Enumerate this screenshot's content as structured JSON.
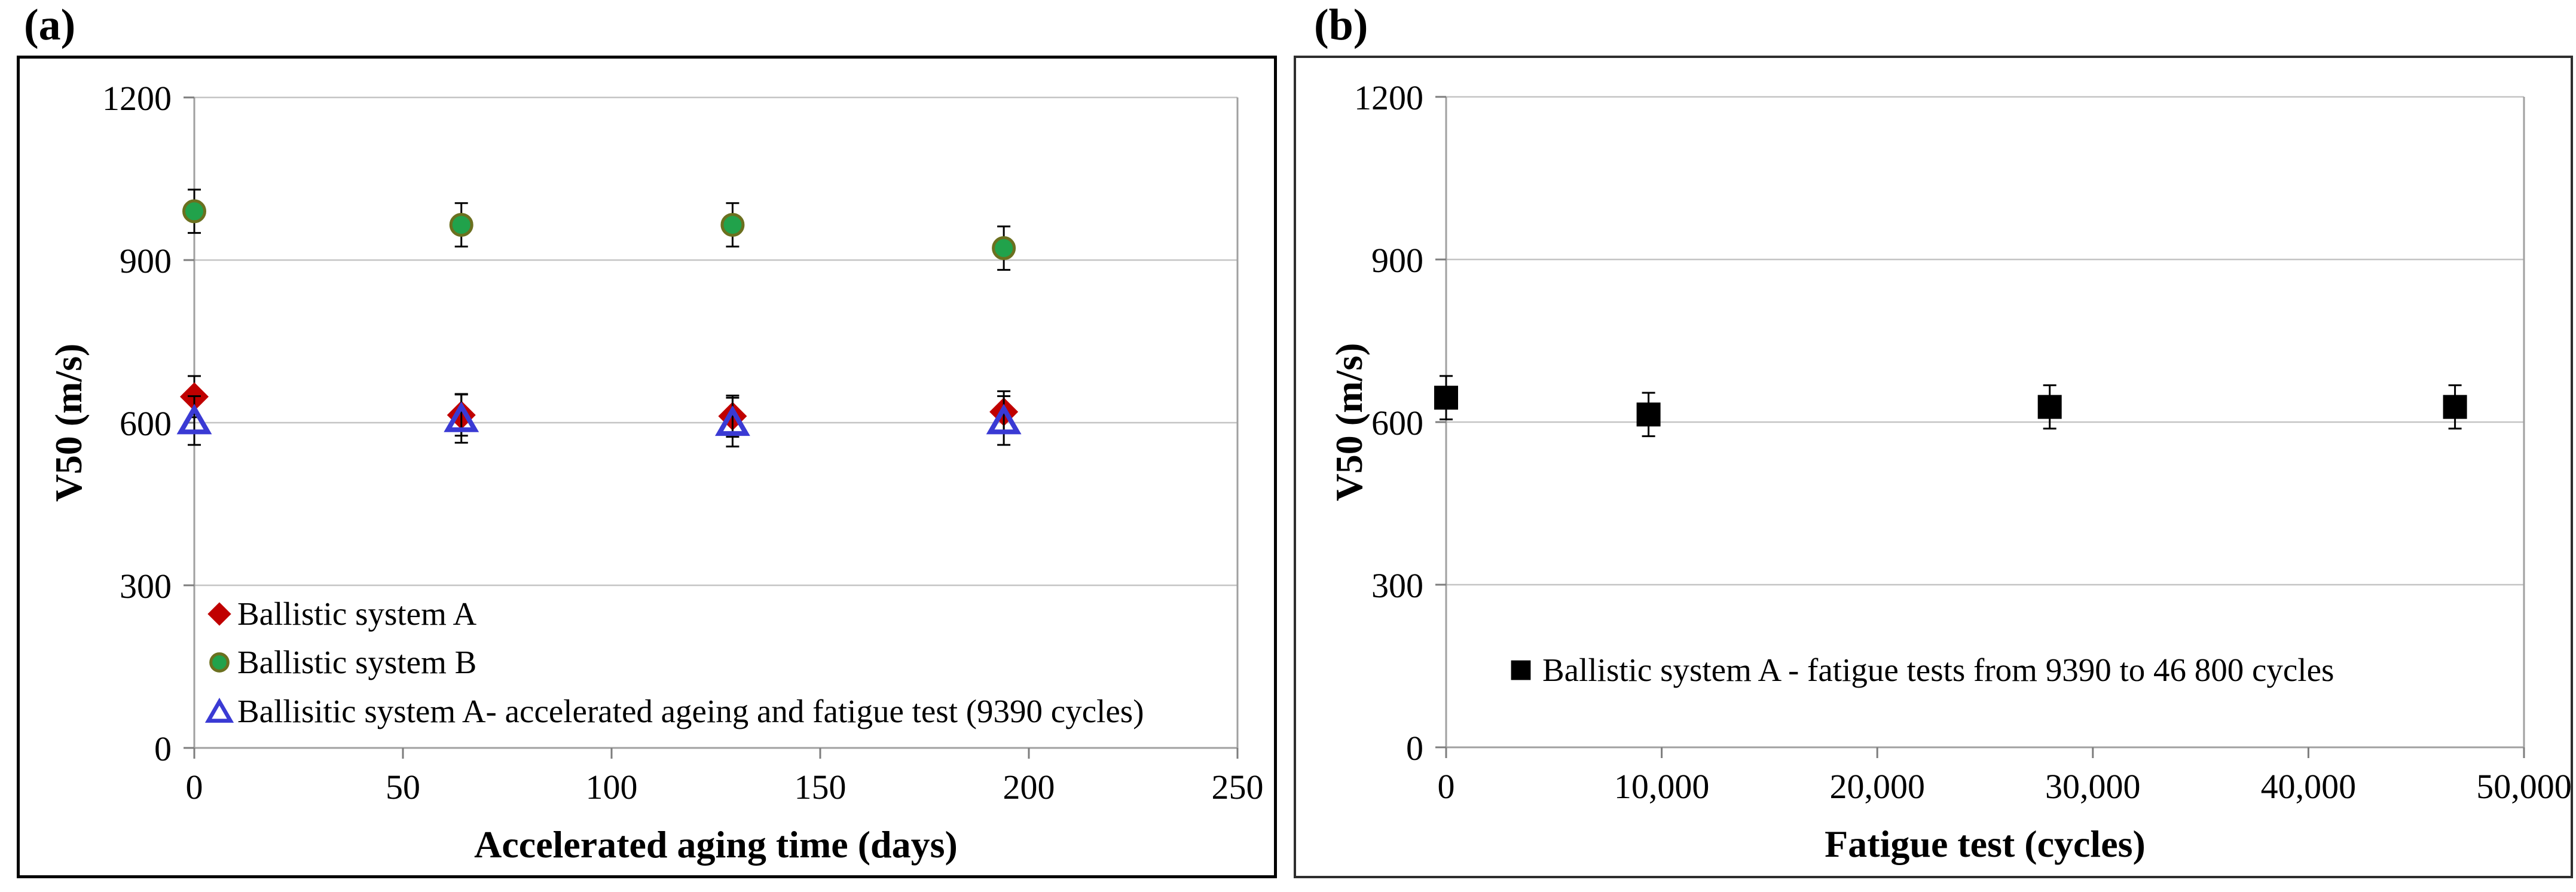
{
  "figure": {
    "background": "#ffffff",
    "panel_a_tag": "(a)",
    "panel_b_tag": "(b)"
  },
  "chart_data": [
    {
      "panel_label": "(a)",
      "type": "scatter",
      "title": "",
      "xlabel": "Accelerated aging time (days)",
      "ylabel": "V50 (m/s)",
      "xlim": [
        0,
        250
      ],
      "ylim": [
        0,
        1200
      ],
      "xticks": [
        0,
        50,
        100,
        150,
        200,
        250
      ],
      "xtick_labels": [
        "0",
        "50",
        "100",
        "150",
        "200",
        "250"
      ],
      "yticks": [
        0,
        300,
        600,
        900,
        1200
      ],
      "ytick_labels": [
        "0",
        "300",
        "600",
        "900",
        "1200"
      ],
      "grid": "horizontal gridlines at y ticks",
      "legend_position": "inside lower-left, no frame",
      "series": [
        {
          "name": "Ballistic system A",
          "marker": "diamond",
          "fill": "#c00000",
          "edge": "#c00000",
          "x": [
            0,
            64,
            129,
            194
          ],
          "y": [
            648,
            614,
            612,
            620
          ],
          "yerr": [
            38,
            38,
            38,
            38
          ]
        },
        {
          "name": "Ballistic system B",
          "marker": "circle",
          "fill": "#21a24b",
          "edge": "#6b701f",
          "x": [
            0,
            64,
            129,
            194
          ],
          "y": [
            990,
            965,
            965,
            922
          ],
          "yerr": [
            40,
            40,
            40,
            40
          ]
        },
        {
          "name": "Ballisitic system A- accelerated ageing and fatigue test (9390 cycles)",
          "marker": "triangle-open",
          "fill": "none",
          "edge": "#3a3ad4",
          "x": [
            0,
            64,
            129,
            194
          ],
          "y": [
            604,
            608,
            601,
            604
          ],
          "yerr": [
            45,
            45,
            45,
            45
          ]
        }
      ]
    },
    {
      "panel_label": "(b)",
      "type": "scatter",
      "title": "",
      "xlabel": "Fatigue test (cycles)",
      "ylabel": "V50 (m/s)",
      "xlim": [
        0,
        50000
      ],
      "ylim": [
        0,
        1200
      ],
      "xticks": [
        0,
        10000,
        20000,
        30000,
        40000,
        50000
      ],
      "xtick_labels": [
        "0",
        "10,000",
        "20,000",
        "30,000",
        "40,000",
        "50,000"
      ],
      "yticks": [
        0,
        300,
        600,
        900,
        1200
      ],
      "ytick_labels": [
        "0",
        "300",
        "600",
        "900",
        "1200"
      ],
      "grid": "horizontal gridlines at y ticks",
      "legend_position": "inside lower-center-left, no frame",
      "series": [
        {
          "name": "Ballistic system A - fatigue tests from 9390 to 46 800 cycles",
          "marker": "square",
          "fill": "#000000",
          "edge": "#000000",
          "x": [
            0,
            9390,
            28000,
            46800
          ],
          "y": [
            645,
            614,
            628,
            628
          ],
          "yerr": [
            40,
            40,
            40,
            40
          ]
        }
      ]
    }
  ],
  "style_colors": {
    "gridline": "#c4c4c4",
    "axis_line": "#a0a0a0",
    "tick_mark": "#7d7d7d",
    "error_bar": "#000000"
  }
}
